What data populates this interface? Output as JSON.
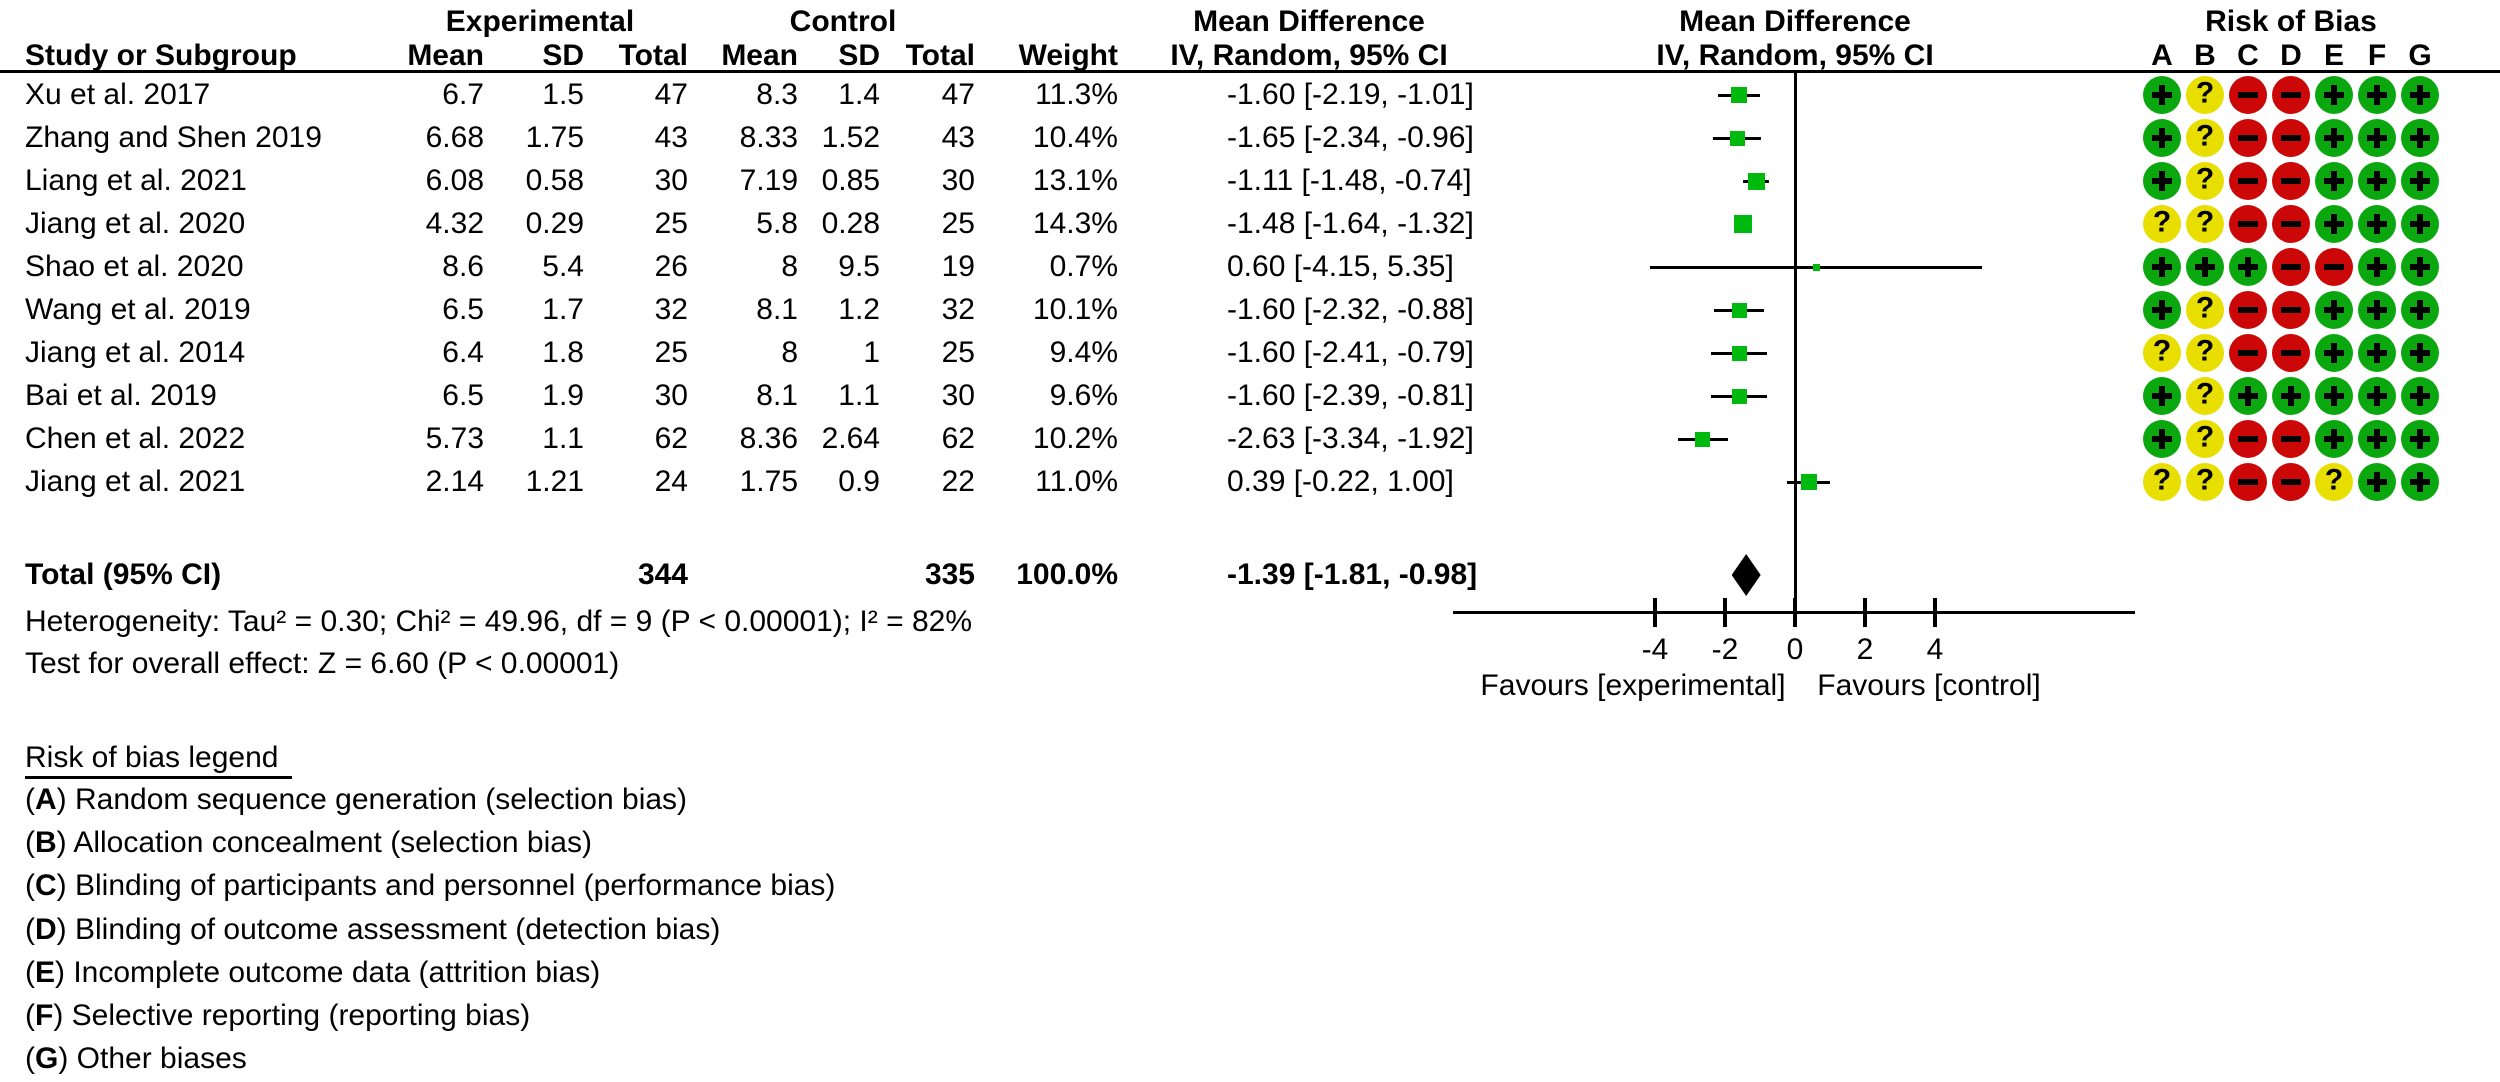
{
  "header": {
    "group1": "Experimental",
    "group2": "Control",
    "md_text_col_title": "Mean Difference",
    "md_text_col_sub": "IV, Random, 95% CI",
    "md_plot_col_title": "Mean Difference",
    "md_plot_col_sub": "IV, Random, 95% CI",
    "rob_title": "Risk of Bias",
    "study": "Study or Subgroup",
    "mean1": "Mean",
    "sd1": "SD",
    "total1": "Total",
    "mean2": "Mean",
    "sd2": "SD",
    "total2": "Total",
    "weight": "Weight",
    "rob_letters": [
      "A",
      "B",
      "C",
      "D",
      "E",
      "F",
      "G"
    ]
  },
  "chart_data": {
    "type": "forest",
    "effect_measure": "Mean Difference (IV, Random, 95% CI)",
    "axis": {
      "ticks": [
        -4,
        -2,
        0,
        2,
        4
      ],
      "xmin": -9.8,
      "xmax": 9.7,
      "zero_line": 0
    },
    "favours_left": "Favours [experimental]",
    "favours_right": "Favours [control]",
    "studies": [
      {
        "name": "Xu et al. 2017",
        "exp_mean": "6.7",
        "exp_sd": "1.5",
        "exp_total": "47",
        "ctrl_mean": "8.3",
        "ctrl_sd": "1.4",
        "ctrl_total": "47",
        "weight": "11.3%",
        "weight_val": 11.3,
        "md": -1.6,
        "ci_low": -2.19,
        "ci_high": -1.01,
        "md_label": "-1.60 [-2.19, -1.01]",
        "rob": [
          "+",
          "?",
          "-",
          "-",
          "+",
          "+",
          "+"
        ]
      },
      {
        "name": "Zhang and Shen 2019",
        "exp_mean": "6.68",
        "exp_sd": "1.75",
        "exp_total": "43",
        "ctrl_mean": "8.33",
        "ctrl_sd": "1.52",
        "ctrl_total": "43",
        "weight": "10.4%",
        "weight_val": 10.4,
        "md": -1.65,
        "ci_low": -2.34,
        "ci_high": -0.96,
        "md_label": "-1.65 [-2.34, -0.96]",
        "rob": [
          "+",
          "?",
          "-",
          "-",
          "+",
          "+",
          "+"
        ]
      },
      {
        "name": "Liang et al. 2021",
        "exp_mean": "6.08",
        "exp_sd": "0.58",
        "exp_total": "30",
        "ctrl_mean": "7.19",
        "ctrl_sd": "0.85",
        "ctrl_total": "30",
        "weight": "13.1%",
        "weight_val": 13.1,
        "md": -1.11,
        "ci_low": -1.48,
        "ci_high": -0.74,
        "md_label": "-1.11 [-1.48, -0.74]",
        "rob": [
          "+",
          "?",
          "-",
          "-",
          "+",
          "+",
          "+"
        ]
      },
      {
        "name": "Jiang et al. 2020",
        "exp_mean": "4.32",
        "exp_sd": "0.29",
        "exp_total": "25",
        "ctrl_mean": "5.8",
        "ctrl_sd": "0.28",
        "ctrl_total": "25",
        "weight": "14.3%",
        "weight_val": 14.3,
        "md": -1.48,
        "ci_low": -1.64,
        "ci_high": -1.32,
        "md_label": "-1.48 [-1.64, -1.32]",
        "rob": [
          "?",
          "?",
          "-",
          "-",
          "+",
          "+",
          "+"
        ]
      },
      {
        "name": "Shao et al. 2020",
        "exp_mean": "8.6",
        "exp_sd": "5.4",
        "exp_total": "26",
        "ctrl_mean": "8",
        "ctrl_sd": "9.5",
        "ctrl_total": "19",
        "weight": "0.7%",
        "weight_val": 0.7,
        "md": 0.6,
        "ci_low": -4.15,
        "ci_high": 5.35,
        "md_label": "0.60 [-4.15, 5.35]",
        "rob": [
          "+",
          "+",
          "+",
          "-",
          "-",
          "+",
          "+"
        ]
      },
      {
        "name": "Wang et al. 2019",
        "exp_mean": "6.5",
        "exp_sd": "1.7",
        "exp_total": "32",
        "ctrl_mean": "8.1",
        "ctrl_sd": "1.2",
        "ctrl_total": "32",
        "weight": "10.1%",
        "weight_val": 10.1,
        "md": -1.6,
        "ci_low": -2.32,
        "ci_high": -0.88,
        "md_label": "-1.60 [-2.32, -0.88]",
        "rob": [
          "+",
          "?",
          "-",
          "-",
          "+",
          "+",
          "+"
        ]
      },
      {
        "name": "Jiang et al. 2014",
        "exp_mean": "6.4",
        "exp_sd": "1.8",
        "exp_total": "25",
        "ctrl_mean": "8",
        "ctrl_sd": "1",
        "ctrl_total": "25",
        "weight": "9.4%",
        "weight_val": 9.4,
        "md": -1.6,
        "ci_low": -2.41,
        "ci_high": -0.79,
        "md_label": "-1.60 [-2.41, -0.79]",
        "rob": [
          "?",
          "?",
          "-",
          "-",
          "+",
          "+",
          "+"
        ]
      },
      {
        "name": "Bai et al. 2019",
        "exp_mean": "6.5",
        "exp_sd": "1.9",
        "exp_total": "30",
        "ctrl_mean": "8.1",
        "ctrl_sd": "1.1",
        "ctrl_total": "30",
        "weight": "9.6%",
        "weight_val": 9.6,
        "md": -1.6,
        "ci_low": -2.39,
        "ci_high": -0.81,
        "md_label": "-1.60 [-2.39, -0.81]",
        "rob": [
          "+",
          "?",
          "+",
          "+",
          "+",
          "+",
          "+"
        ]
      },
      {
        "name": "Chen et al. 2022",
        "exp_mean": "5.73",
        "exp_sd": "1.1",
        "exp_total": "62",
        "ctrl_mean": "8.36",
        "ctrl_sd": "2.64",
        "ctrl_total": "62",
        "weight": "10.2%",
        "weight_val": 10.2,
        "md": -2.63,
        "ci_low": -3.34,
        "ci_high": -1.92,
        "md_label": "-2.63 [-3.34, -1.92]",
        "rob": [
          "+",
          "?",
          "-",
          "-",
          "+",
          "+",
          "+"
        ]
      },
      {
        "name": "Jiang et al. 2021",
        "exp_mean": "2.14",
        "exp_sd": "1.21",
        "exp_total": "24",
        "ctrl_mean": "1.75",
        "ctrl_sd": "0.9",
        "ctrl_total": "22",
        "weight": "11.0%",
        "weight_val": 11.0,
        "md": 0.39,
        "ci_low": -0.22,
        "ci_high": 1.0,
        "md_label": "0.39 [-0.22, 1.00]",
        "rob": [
          "?",
          "?",
          "-",
          "-",
          "?",
          "+",
          "+"
        ]
      }
    ],
    "total": {
      "label": "Total (95% CI)",
      "exp_total": "344",
      "ctrl_total": "335",
      "weight": "100.0%",
      "md": -1.39,
      "ci_low": -1.81,
      "ci_high": -0.98,
      "md_label": "-1.39 [-1.81, -0.98]"
    },
    "heterogeneity": "Heterogeneity: Tau² = 0.30; Chi² = 49.96, df = 9 (P < 0.00001); I² = 82%",
    "overall_effect": "Test for overall effect: Z = 6.60 (P < 0.00001)"
  },
  "rob_legend": {
    "title": "Risk of bias legend",
    "items": [
      {
        "letter": "A",
        "text": "Random sequence generation (selection bias)"
      },
      {
        "letter": "B",
        "text": "Allocation concealment (selection bias)"
      },
      {
        "letter": "C",
        "text": "Blinding of participants and personnel (performance bias)"
      },
      {
        "letter": "D",
        "text": "Blinding of outcome assessment (detection bias)"
      },
      {
        "letter": "E",
        "text": "Incomplete outcome data (attrition bias)"
      },
      {
        "letter": "F",
        "text": "Selective reporting (reporting bias)"
      },
      {
        "letter": "G",
        "text": "Other biases"
      }
    ]
  },
  "colors": {
    "low_risk_green": "#0AA70F",
    "unclear_yellow": "#E8DE00",
    "high_risk_red": "#CB0707",
    "marker_green": "#00B90F",
    "line_black": "#000000"
  }
}
